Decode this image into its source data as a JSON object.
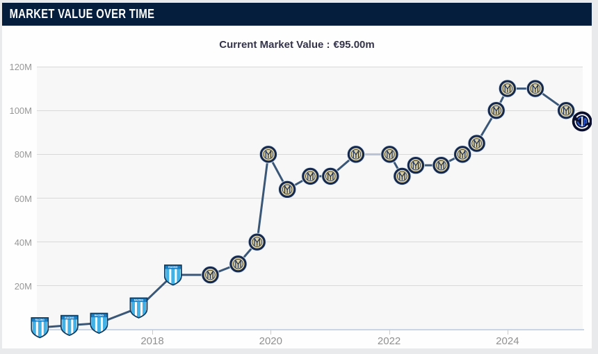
{
  "header": {
    "title": "MARKET VALUE OVER TIME",
    "bg_color": "#051e3e",
    "text_color": "#ffffff"
  },
  "subtitle": {
    "label": "Current Market Value :",
    "value": "€95.00m"
  },
  "chart_data": {
    "type": "line",
    "title": "MARKET VALUE OVER TIME",
    "subtitle": "Current Market Value : €95.00m",
    "series_name": "Market value",
    "y_unit": "million €",
    "x_range": [
      2016.05,
      2025.27
    ],
    "y_range": [
      0,
      120
    ],
    "x_ticks": [
      2018,
      2020,
      2022,
      2024
    ],
    "x_tick_labels": [
      "2018",
      "2020",
      "2022",
      "2024"
    ],
    "y_ticks": [
      20,
      40,
      60,
      80,
      100,
      120
    ],
    "y_tick_labels": [
      "20M",
      "40M",
      "60M",
      "80M",
      "100M",
      "120M"
    ],
    "grid": "horizontal",
    "legend": "none",
    "line_color": "#3a5777",
    "muted_segment_start_index": 12,
    "muted_segment_color": "#b7c3d5",
    "points": [
      {
        "x": 2016.1,
        "value": 1,
        "club": "racing"
      },
      {
        "x": 2016.6,
        "value": 2,
        "club": "racing"
      },
      {
        "x": 2017.1,
        "value": 3,
        "club": "racing"
      },
      {
        "x": 2017.77,
        "value": 10,
        "club": "racing"
      },
      {
        "x": 2018.35,
        "value": 25,
        "club": "racing"
      },
      {
        "x": 2018.98,
        "value": 25,
        "club": "inter_old"
      },
      {
        "x": 2019.45,
        "value": 30,
        "club": "inter_old"
      },
      {
        "x": 2019.77,
        "value": 40,
        "club": "inter_old"
      },
      {
        "x": 2019.96,
        "value": 80,
        "club": "inter_old"
      },
      {
        "x": 2020.28,
        "value": 64,
        "club": "inter_old"
      },
      {
        "x": 2020.67,
        "value": 70,
        "club": "inter_old"
      },
      {
        "x": 2021.01,
        "value": 70,
        "club": "inter_old"
      },
      {
        "x": 2021.44,
        "value": 80,
        "club": "inter_old"
      },
      {
        "x": 2022.01,
        "value": 80,
        "club": "inter_old"
      },
      {
        "x": 2022.22,
        "value": 70,
        "club": "inter_old"
      },
      {
        "x": 2022.45,
        "value": 75,
        "club": "inter_old"
      },
      {
        "x": 2022.88,
        "value": 75,
        "club": "inter_old"
      },
      {
        "x": 2023.24,
        "value": 80,
        "club": "inter_old"
      },
      {
        "x": 2023.48,
        "value": 85,
        "club": "inter_old"
      },
      {
        "x": 2023.81,
        "value": 100,
        "club": "inter_old"
      },
      {
        "x": 2024.0,
        "value": 110,
        "club": "inter_old"
      },
      {
        "x": 2024.47,
        "value": 110,
        "club": "inter_old"
      },
      {
        "x": 2024.99,
        "value": 100,
        "club": "inter_old"
      },
      {
        "x": 2025.26,
        "value": 95,
        "club": "inter_new"
      }
    ],
    "markers": {
      "racing": {
        "name": "racing-club-badge",
        "label": "RACING",
        "stripe_color": "#41b1e6",
        "band_color": "#1b7fc4",
        "outline_color": "#0e3a5e",
        "body_color": "#ffffff"
      },
      "inter_old": {
        "name": "inter-milan-old-crest",
        "ring_color": "#16294d",
        "center_color": "#dbd0a5",
        "halo_color": "#d6e6f2"
      },
      "inter_new": {
        "name": "inter-milan-new-crest",
        "bg_color": "#090e2c",
        "accent_color": "#2c59cf",
        "white_color": "#f5f6fa"
      }
    },
    "axis_colors": {
      "gridline": "#d9d9d9",
      "axis_line": "#c9d5e5",
      "tick": "#c9c9c9",
      "label": "#979797"
    }
  }
}
